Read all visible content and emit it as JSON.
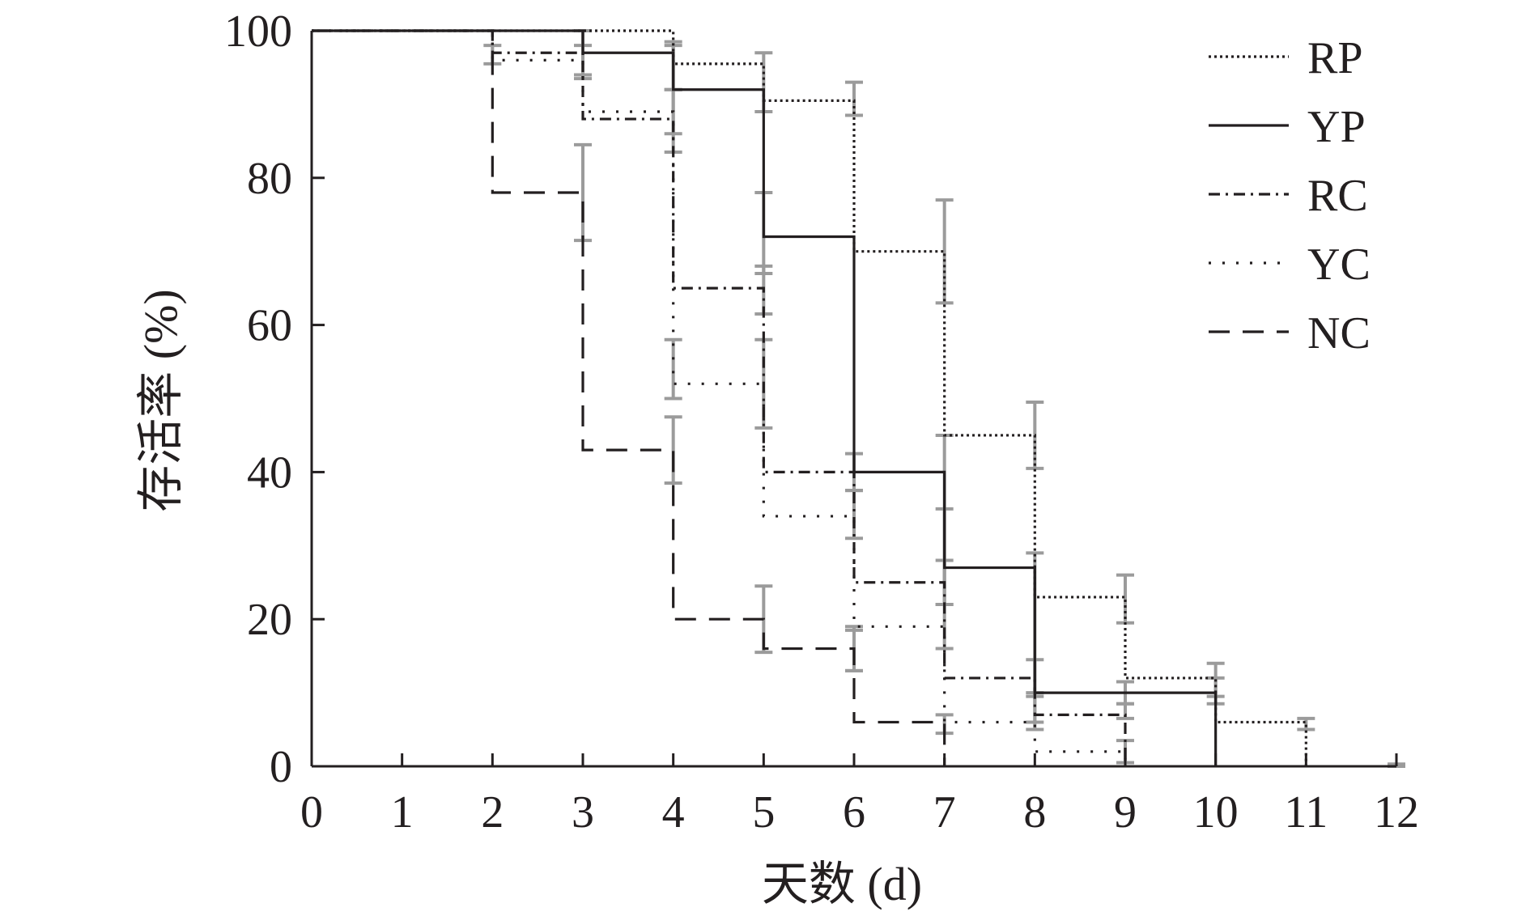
{
  "chart_data": {
    "type": "line",
    "subtype": "step (Kaplan-Meier survival curves with error bars)",
    "title": "",
    "xlabel": "天数 (d)",
    "ylabel": "存活率 (%)",
    "xlim": [
      0,
      12
    ],
    "ylim": [
      0,
      100
    ],
    "xticks": [
      "0",
      "1",
      "2",
      "3",
      "4",
      "5",
      "6",
      "7",
      "8",
      "9",
      "10",
      "11",
      "12"
    ],
    "yticks": [
      "0",
      "20",
      "40",
      "60",
      "80",
      "100"
    ],
    "grid": false,
    "legend": {
      "position": "top-right"
    },
    "colors": {
      "line": "#231f20",
      "errorbar": "#9b9b9b"
    },
    "series": [
      {
        "name": "RP",
        "style": "dotted",
        "x": [
          0,
          4,
          5,
          6,
          7,
          8,
          9,
          10,
          11
        ],
        "y": [
          100,
          95.5,
          90.5,
          70,
          45,
          23,
          12,
          6,
          0
        ],
        "error_bars": [
          {
            "x": 3,
            "low": 98,
            "high": 100
          },
          {
            "x": 4,
            "low": 92,
            "high": 98
          },
          {
            "x": 5,
            "low": 89,
            "high": 97
          },
          {
            "x": 6,
            "low": 88.5,
            "high": 93
          },
          {
            "x": 7,
            "low": 63,
            "high": 77
          },
          {
            "x": 8,
            "low": 40.5,
            "high": 49.5
          },
          {
            "x": 9,
            "low": 19.5,
            "high": 26
          },
          {
            "x": 10,
            "low": 9.5,
            "high": 14
          },
          {
            "x": 11,
            "low": 5,
            "high": 6.5
          }
        ]
      },
      {
        "name": "YP",
        "style": "solid",
        "x": [
          0,
          3,
          4,
          5,
          6,
          7,
          8,
          10
        ],
        "y": [
          100,
          97,
          92,
          72,
          40,
          27,
          10,
          0
        ],
        "error_bars": [
          {
            "x": 3,
            "low": 94,
            "high": 100
          },
          {
            "x": 4,
            "low": 86,
            "high": 98.5
          },
          {
            "x": 5,
            "low": 67,
            "high": 78
          },
          {
            "x": 6,
            "low": 37.5,
            "high": 42.5
          },
          {
            "x": 7,
            "low": 22,
            "high": 45
          },
          {
            "x": 8,
            "low": 9.5,
            "high": 29
          },
          {
            "x": 9,
            "low": 8.5,
            "high": 11.5
          },
          {
            "x": 10,
            "low": 8.5,
            "high": 12
          }
        ]
      },
      {
        "name": "RC",
        "style": "dash-dot",
        "x": [
          0,
          2,
          3,
          4,
          5,
          6,
          7,
          8,
          9
        ],
        "y": [
          100,
          97,
          88,
          65,
          40,
          25,
          12,
          7,
          0
        ],
        "error_bars": [
          {
            "x": 2,
            "low": 95.5,
            "high": 98
          },
          {
            "x": 3,
            "low": 93.5,
            "high": 100
          },
          {
            "x": 4,
            "low": 83.5,
            "high": 92
          },
          {
            "x": 5,
            "low": 61.5,
            "high": 68
          },
          {
            "x": 6,
            "low": 31,
            "high": 37.5
          },
          {
            "x": 7,
            "low": 22,
            "high": 35
          },
          {
            "x": 8,
            "low": 5,
            "high": 14.5
          },
          {
            "x": 9,
            "low": 6.5,
            "high": 8.5
          }
        ]
      },
      {
        "name": "YC",
        "style": "loose-dotted",
        "x": [
          0,
          2,
          3,
          4,
          5,
          6,
          7,
          8,
          9
        ],
        "y": [
          100,
          96,
          89,
          52,
          34,
          19,
          6,
          2,
          0
        ],
        "error_bars": [
          {
            "x": 4,
            "low": 50,
            "high": 58
          },
          {
            "x": 5,
            "low": 46,
            "high": 58
          },
          {
            "x": 6,
            "low": 13,
            "high": 19
          },
          {
            "x": 7,
            "low": 16,
            "high": 28
          },
          {
            "x": 8,
            "low": 6,
            "high": 10
          },
          {
            "x": 9,
            "low": 0.5,
            "high": 3.5
          }
        ]
      },
      {
        "name": "NC",
        "style": "dashed",
        "x": [
          0,
          2,
          3,
          4,
          5,
          6,
          7
        ],
        "y": [
          100,
          78,
          43,
          20,
          16,
          6,
          0
        ],
        "error_bars": [
          {
            "x": 3,
            "low": 71.5,
            "high": 84.5
          },
          {
            "x": 4,
            "low": 38.5,
            "high": 47.5
          },
          {
            "x": 5,
            "low": 15.5,
            "high": 24.5
          },
          {
            "x": 6,
            "low": 13,
            "high": 18.5
          },
          {
            "x": 7,
            "low": 4.5,
            "high": 7
          },
          {
            "x": 12,
            "low": 0,
            "high": 0.3
          }
        ]
      }
    ]
  }
}
